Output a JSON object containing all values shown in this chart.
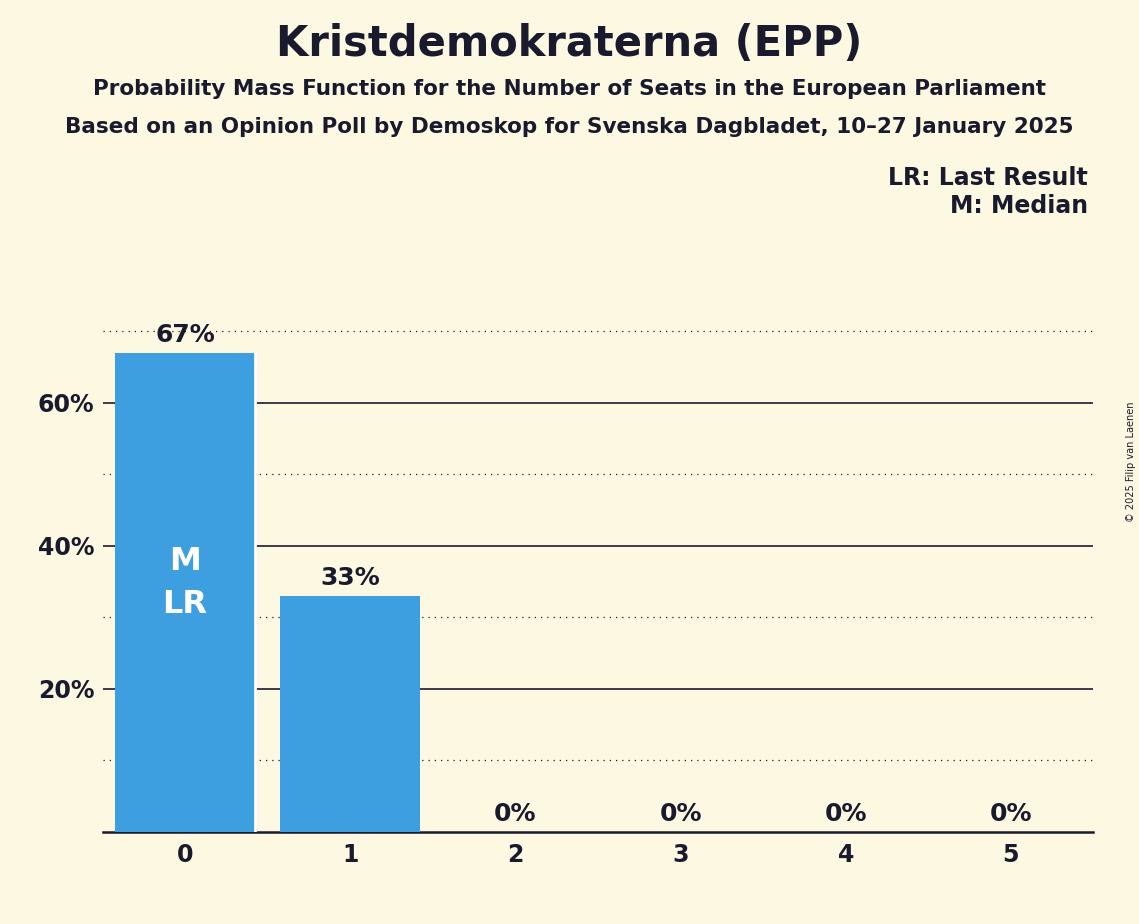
{
  "title": "Kristdemokraterna (EPP)",
  "subtitle1": "Probability Mass Function for the Number of Seats in the European Parliament",
  "subtitle2": "Based on an Opinion Poll by Demoskop for Svenska Dagbladet, 10–27 January 2025",
  "copyright": "© 2025 Filip van Laenen",
  "categories": [
    0,
    1,
    2,
    3,
    4,
    5
  ],
  "values": [
    0.67,
    0.33,
    0.0,
    0.0,
    0.0,
    0.0
  ],
  "bar_color": "#3d9fe0",
  "background_color": "#fdf8e1",
  "text_color": "#1a1a2e",
  "bar_top_label_color": "#1a1a2e",
  "bar_inside_label_color": "#ffffff",
  "median_seat": 0,
  "last_result_seat": 0,
  "legend_lr": "LR: Last Result",
  "legend_m": "M: Median",
  "ylim": [
    0,
    0.75
  ],
  "yticks": [
    0.2,
    0.4,
    0.6
  ],
  "ytick_labels": [
    "20%",
    "40%",
    "60%"
  ],
  "solid_gridlines": [
    0.2,
    0.4,
    0.6
  ],
  "dotted_gridlines": [
    0.1,
    0.3,
    0.5,
    0.7
  ],
  "title_fontsize": 30,
  "subtitle_fontsize": 15.5,
  "tick_fontsize": 17,
  "bar_label_fontsize": 18,
  "inside_label_fontsize": 23,
  "legend_fontsize": 17
}
